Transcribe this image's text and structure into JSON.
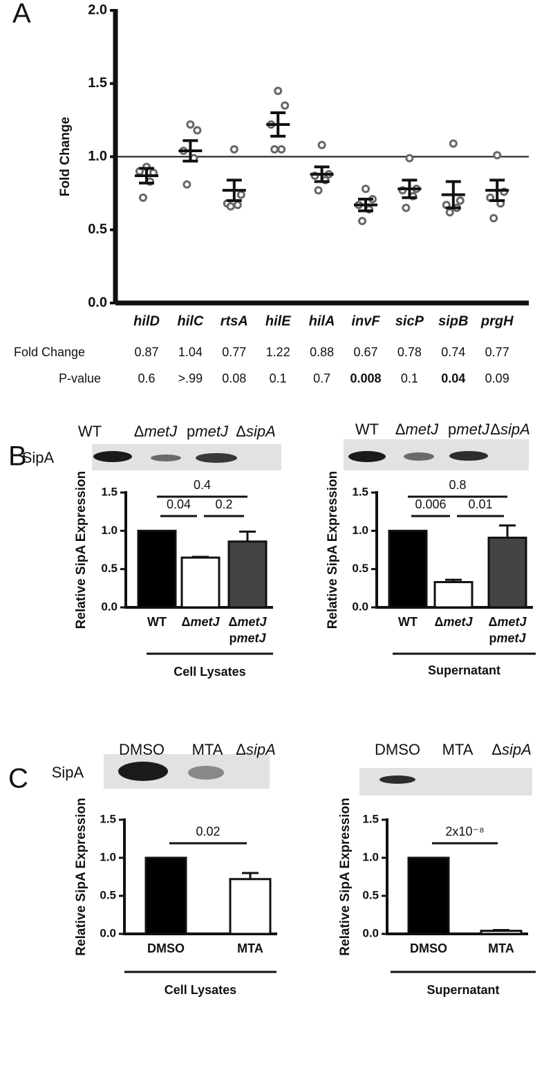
{
  "panel_labels": [
    "A",
    "B",
    "C"
  ],
  "blots": [
    {
      "lanes": [
        "WT",
        "ΔmetJ",
        "pmetJ",
        "ΔsipA"
      ],
      "row_label": "SipA"
    },
    {
      "lanes": [
        "WT",
        "ΔmetJ",
        "pmetJ",
        "ΔsipA"
      ]
    },
    {
      "lanes": [
        "DMSO",
        "MTA",
        "ΔsipA"
      ],
      "row_label": "SipA"
    },
    {
      "lanes": [
        "DMSO",
        "MTA",
        "ΔsipA"
      ]
    }
  ],
  "table": {
    "row_headers": [
      "Fold Change",
      "P-value"
    ],
    "fold_change": [
      0.87,
      1.04,
      0.77,
      1.22,
      0.88,
      0.67,
      0.78,
      0.74,
      0.77
    ],
    "p_value": [
      "0.6",
      ">.99",
      "0.08",
      "0.1",
      "0.7",
      "0.008",
      "0.1",
      "0.04",
      "0.09"
    ],
    "p_value_bold": [
      false,
      false,
      false,
      false,
      false,
      true,
      false,
      true,
      false
    ]
  },
  "chart_data": [
    {
      "type": "scatter",
      "y_label": "Fold Change",
      "categories": [
        "hilD",
        "hilC",
        "rtsA",
        "hilE",
        "hilA",
        "invF",
        "sicP",
        "sipB",
        "prgH"
      ],
      "replicates": [
        [
          0.93,
          0.89,
          0.9,
          0.83,
          0.72
        ],
        [
          1.22,
          1.18,
          1.04,
          0.99,
          0.81
        ],
        [
          1.05,
          0.74,
          0.68,
          0.67,
          0.66
        ],
        [
          1.45,
          1.35,
          1.22,
          1.05,
          1.05
        ],
        [
          1.08,
          0.88,
          0.87,
          0.84,
          0.77
        ],
        [
          0.78,
          0.71,
          0.67,
          0.64,
          0.56
        ],
        [
          0.99,
          0.78,
          0.77,
          0.73,
          0.65
        ],
        [
          1.09,
          0.7,
          0.67,
          0.65,
          0.62
        ],
        [
          1.01,
          0.76,
          0.72,
          0.68,
          0.58
        ]
      ],
      "means": [
        0.87,
        1.04,
        0.77,
        1.22,
        0.88,
        0.67,
        0.78,
        0.74,
        0.77
      ],
      "errors": [
        0.05,
        0.07,
        0.07,
        0.08,
        0.05,
        0.04,
        0.06,
        0.09,
        0.07
      ],
      "color": "#666666",
      "reference_line": 1,
      "ylim": [
        0,
        2
      ],
      "yticks": [
        {
          "value": 0,
          "label": "0.0"
        },
        {
          "value": 0.5,
          "label": "0.5"
        },
        {
          "value": 1,
          "label": "1.0"
        },
        {
          "value": 1.5,
          "label": "1.5"
        },
        {
          "value": 2,
          "label": "2.0"
        }
      ]
    },
    {
      "type": "bar",
      "y_label": "Relative SipA Expression",
      "categories": [
        "WT",
        "ΔmetJ",
        "ΔmetJ\npmetJ"
      ],
      "values": [
        1,
        0.65,
        0.86
      ],
      "errors": [
        null,
        0.01,
        0.13
      ],
      "colors": [
        "#000000",
        "#ffffff",
        "#444444"
      ],
      "ylim": [
        0,
        1.5
      ],
      "yticks": [
        {
          "value": 0,
          "label": "0.0"
        },
        {
          "value": 0.5,
          "label": "0.5"
        },
        {
          "value": 1,
          "label": "1.0"
        },
        {
          "value": 1.5,
          "label": "1.5"
        }
      ],
      "group_label": "Cell Lysates",
      "brackets": [
        {
          "between": [
            0,
            1
          ],
          "label": "0.04"
        },
        {
          "between": [
            1,
            2
          ],
          "label": "0.2"
        },
        {
          "between": [
            0,
            2
          ],
          "label": "0.4"
        }
      ]
    },
    {
      "type": "bar",
      "y_label": "Relative SipA Expression",
      "categories": [
        "WT",
        "ΔmetJ",
        "ΔmetJ\npmetJ"
      ],
      "values": [
        1,
        0.33,
        0.91
      ],
      "errors": [
        null,
        0.03,
        0.16
      ],
      "colors": [
        "#000000",
        "#ffffff",
        "#444444"
      ],
      "ylim": [
        0,
        1.5
      ],
      "yticks": [
        {
          "value": 0,
          "label": "0.0"
        },
        {
          "value": 0.5,
          "label": "0.5"
        },
        {
          "value": 1,
          "label": "1.0"
        },
        {
          "value": 1.5,
          "label": "1.5"
        }
      ],
      "group_label": "Supernatant",
      "brackets": [
        {
          "between": [
            0,
            1
          ],
          "label": "0.006"
        },
        {
          "between": [
            1,
            2
          ],
          "label": "0.01"
        },
        {
          "between": [
            0,
            2
          ],
          "label": "0.8"
        }
      ]
    },
    {
      "type": "bar",
      "y_label": "Relative SipA Expression",
      "categories": [
        "DMSO",
        "MTA"
      ],
      "values": [
        1,
        0.72
      ],
      "errors": [
        null,
        0.08
      ],
      "colors": [
        "#000000",
        "#ffffff"
      ],
      "ylim": [
        0,
        1.5
      ],
      "yticks": [
        {
          "value": 0,
          "label": "0.0"
        },
        {
          "value": 0.5,
          "label": "0.5"
        },
        {
          "value": 1,
          "label": "1.0"
        },
        {
          "value": 1.5,
          "label": "1.5"
        }
      ],
      "group_label": "Cell Lysates",
      "brackets": [
        {
          "between": [
            0,
            1
          ],
          "label": "0.02"
        }
      ]
    },
    {
      "type": "bar",
      "y_label": "Relative SipA Expression",
      "categories": [
        "DMSO",
        "MTA"
      ],
      "values": [
        1,
        0.04
      ],
      "errors": [
        null,
        0.01
      ],
      "colors": [
        "#000000",
        "#ffffff"
      ],
      "ylim": [
        0,
        1.5
      ],
      "yticks": [
        {
          "value": 0,
          "label": "0.0"
        },
        {
          "value": 0.5,
          "label": "0.5"
        },
        {
          "value": 1,
          "label": "1.0"
        },
        {
          "value": 1.5,
          "label": "1.5"
        }
      ],
      "group_label": "Supernatant",
      "brackets": [
        {
          "between": [
            0,
            1
          ],
          "label": "2x10⁻⁸"
        }
      ]
    }
  ]
}
